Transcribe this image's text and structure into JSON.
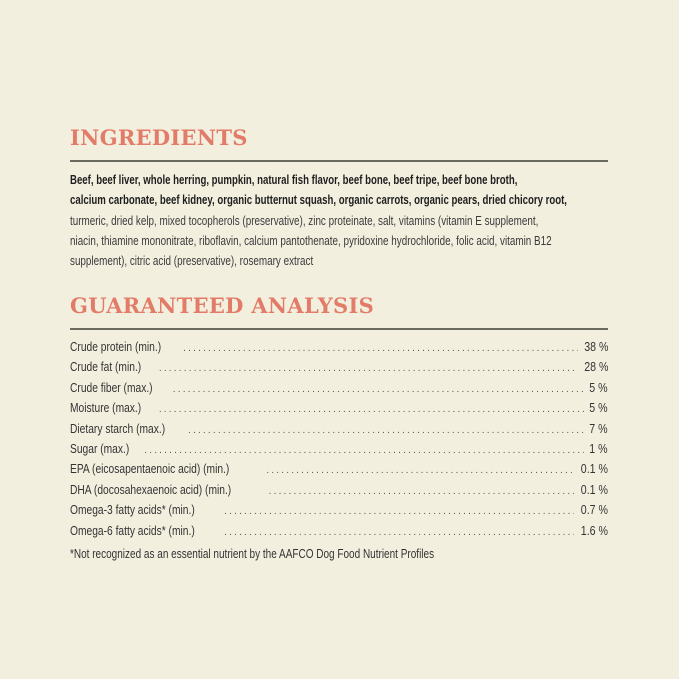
{
  "colors": {
    "background": "#f3efdf",
    "heading": "#e27c68",
    "rule": "#6b6a5e"
  },
  "ingredients": {
    "title": "INGREDIENTS",
    "lines": [
      {
        "text": "Beef, beef liver, whole herring, pumpkin, natural fish flavor, beef bone, beef tripe, beef bone broth,",
        "bold": true
      },
      {
        "text": "calcium carbonate, beef kidney, organic butternut squash, organic carrots, organic pears, dried chicory root,",
        "bold": true
      },
      {
        "text": "turmeric, dried kelp, mixed tocopherols (preservative), zinc proteinate, salt, vitamins (vitamin E supplement,",
        "bold": false
      },
      {
        "text": "niacin, thiamine mononitrate, riboflavin, calcium pantothenate, pyridoxine hydrochloride, folic acid, vitamin B12",
        "bold": false
      },
      {
        "text": "supplement), citric acid (preservative), rosemary extract",
        "bold": false
      }
    ]
  },
  "analysis": {
    "title": "GUARANTEED ANALYSIS",
    "rows": [
      {
        "label": "Crude protein (min.)",
        "value": "38 %"
      },
      {
        "label": "Crude fat (min.)",
        "value": "28 %"
      },
      {
        "label": "Crude fiber (max.)",
        "value": "5 %"
      },
      {
        "label": "Moisture (max.)",
        "value": "5 %"
      },
      {
        "label": "Dietary starch (max.)",
        "value": "7 %"
      },
      {
        "label": "Sugar (max.)",
        "value": "1 %"
      },
      {
        "label": "EPA (eicosapentaenoic acid) (min.)",
        "value": "0.1 %"
      },
      {
        "label": "DHA (docosahexaenoic acid) (min.)",
        "value": "0.1 %"
      },
      {
        "label": "Omega-3 fatty acids* (min.)",
        "value": "0.7 %"
      },
      {
        "label": "Omega-6 fatty acids* (min.)",
        "value": "1.6 %"
      }
    ],
    "footnote": "*Not recognized as an essential nutrient by the AAFCO Dog Food Nutrient Profiles"
  }
}
